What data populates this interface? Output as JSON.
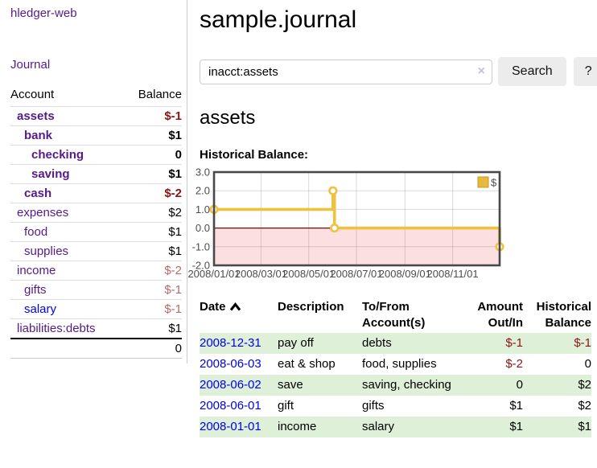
{
  "app": {
    "title": "hledger-web"
  },
  "colors": {
    "link_purple": "#551a8b",
    "link_blue": "#0000ee",
    "negative_strong": "#8b1414",
    "negative_soft": "#b36b6b",
    "row_stripe_green": "#dff0d8",
    "series_gold": "#edc240",
    "zero_line_red": "#8b0000",
    "negative_area_pink": "#fbdfe1"
  },
  "sidebar": {
    "journal_link": "Journal",
    "headers": {
      "account": "Account",
      "balance": "Balance"
    },
    "rows": [
      {
        "name": "assets",
        "balance": "$-1",
        "indent": 1,
        "bold": true,
        "neg": "strong"
      },
      {
        "name": "bank",
        "balance": "$1",
        "indent": 2,
        "bold": true,
        "neg": null
      },
      {
        "name": "checking",
        "balance": "0",
        "indent": 3,
        "bold": true,
        "neg": null
      },
      {
        "name": "saving",
        "balance": "$1",
        "indent": 3,
        "bold": true,
        "neg": null
      },
      {
        "name": "cash",
        "balance": "$-2",
        "indent": 2,
        "bold": true,
        "neg": "strong"
      },
      {
        "name": "expenses",
        "balance": "$2",
        "indent": 1,
        "bold": false,
        "neg": null
      },
      {
        "name": "food",
        "balance": "$1",
        "indent": 2,
        "bold": false,
        "neg": null
      },
      {
        "name": "supplies",
        "balance": "$1",
        "indent": 2,
        "bold": false,
        "neg": null
      },
      {
        "name": "income",
        "balance": "$-2",
        "indent": 1,
        "bold": false,
        "neg": "soft"
      },
      {
        "name": "gifts",
        "balance": "$-1",
        "indent": 2,
        "bold": false,
        "neg": "soft"
      },
      {
        "name": "salary",
        "balance": "$-1",
        "indent": 2,
        "bold": false,
        "neg": "soft",
        "blue": true
      },
      {
        "name": "liabilities:debts",
        "balance": "$1",
        "indent": 1,
        "bold": false,
        "neg": null
      }
    ],
    "total": "0"
  },
  "main": {
    "title": "sample.journal",
    "search": {
      "value": "inacct:assets",
      "clear_icon": "×",
      "button": "Search",
      "help_button": "?"
    },
    "account_heading": "assets",
    "chart_label": "Historical Balance:"
  },
  "chart_data": {
    "type": "line",
    "step": true,
    "title": "Historical Balance:",
    "ylim": [
      -2.0,
      3.0
    ],
    "yticks": [
      "3.0",
      "2.0",
      "1.0",
      "0.0",
      "-1.0",
      "-2.0"
    ],
    "xticks": [
      "2008/01/01",
      "2008/03/01",
      "2008/05/01",
      "2008/07/01",
      "2008/09/01",
      "2008/11/01"
    ],
    "grid": true,
    "legend_position": "top-right",
    "series": [
      {
        "name": "$",
        "points": [
          {
            "x": "2008-01-01",
            "y": 1
          },
          {
            "x": "2008-06-01",
            "y": 2
          },
          {
            "x": "2008-06-02",
            "y": 2
          },
          {
            "x": "2008-06-03",
            "y": 0
          },
          {
            "x": "2008-12-31",
            "y": -1
          }
        ]
      }
    ],
    "annotations": {
      "zero_line": true,
      "negative_region_shaded": true
    }
  },
  "register": {
    "headers": {
      "date": "Date",
      "description": "Description",
      "accounts": "To/From Account(s)",
      "amount": "Amount Out/In",
      "balance": "Historical Balance"
    },
    "rows": [
      {
        "date": "2008-12-31",
        "description": "pay off",
        "accounts": "debts",
        "amount": "$-1",
        "balance": "$-1"
      },
      {
        "date": "2008-06-03",
        "description": "eat & shop",
        "accounts": "food, supplies",
        "amount": "$-2",
        "balance": "0"
      },
      {
        "date": "2008-06-02",
        "description": "save",
        "accounts": "saving, checking",
        "amount": "0",
        "balance": "$2"
      },
      {
        "date": "2008-06-01",
        "description": "gift",
        "accounts": "gifts",
        "amount": "$1",
        "balance": "$2"
      },
      {
        "date": "2008-01-01",
        "description": "income",
        "accounts": "salary",
        "amount": "$1",
        "balance": "$1"
      }
    ]
  }
}
